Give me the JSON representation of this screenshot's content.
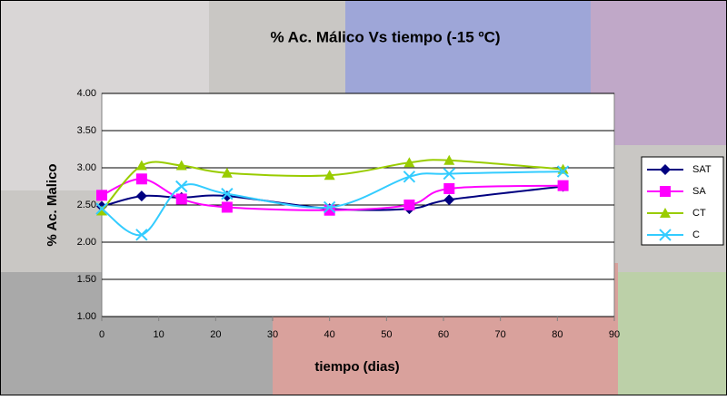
{
  "chart_data": {
    "type": "line",
    "title": "% Ac. Málico Vs tiempo  (-15 ºC)",
    "x_label": "tiempo (dias)",
    "y_label": "% Ac. Malico",
    "x": [
      0,
      7,
      14,
      22,
      40,
      54,
      61,
      81
    ],
    "series": [
      {
        "name": "SAT",
        "color": "#000080",
        "marker": "diamond",
        "values": [
          2.48,
          2.62,
          2.6,
          2.62,
          2.45,
          2.45,
          2.57,
          2.75
        ]
      },
      {
        "name": "SA",
        "color": "#ff00ff",
        "marker": "square",
        "values": [
          2.63,
          2.85,
          2.58,
          2.47,
          2.43,
          2.5,
          2.72,
          2.76
        ]
      },
      {
        "name": "CT",
        "color": "#99cc00",
        "marker": "triangle",
        "values": [
          2.42,
          3.03,
          3.03,
          2.93,
          2.9,
          3.07,
          3.1,
          2.98
        ]
      },
      {
        "name": "C",
        "color": "#33ccff",
        "marker": "cross",
        "values": [
          2.45,
          2.1,
          2.75,
          2.65,
          2.47,
          2.88,
          2.92,
          2.95
        ]
      }
    ],
    "xlim": [
      0,
      90
    ],
    "xticks": [
      0,
      10,
      20,
      30,
      40,
      50,
      60,
      70,
      80,
      90
    ],
    "ylim": [
      1,
      4
    ],
    "yticks": [
      {
        "value": 1,
        "label": "1.00"
      },
      {
        "value": 1.5,
        "label": "1.50"
      },
      {
        "value": 2,
        "label": "2.00"
      },
      {
        "value": 2.5,
        "label": "2.50"
      },
      {
        "value": 3,
        "label": "3.00"
      },
      {
        "value": 3.5,
        "label": "3.50"
      },
      {
        "value": 4,
        "label": "4.00"
      }
    ],
    "grid": true,
    "smooth": true,
    "legend": "right"
  }
}
